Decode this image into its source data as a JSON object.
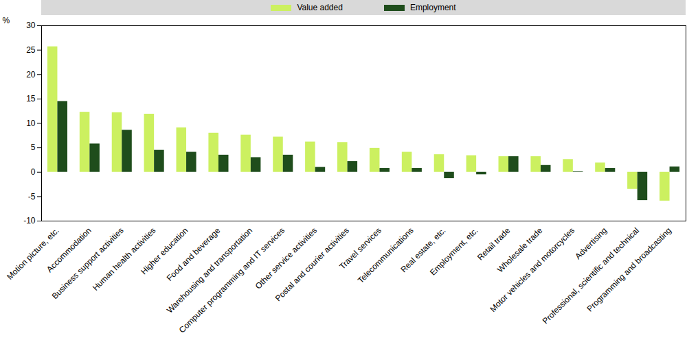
{
  "chart_data": {
    "type": "bar",
    "categories": [
      "Motion picture, etc.",
      "Accommodation",
      "Business support activities",
      "Human health activities",
      "Higher education",
      "Food and beverage",
      "Warehousing and transportation",
      "Computer programming and IT services",
      "Other service activities",
      "Postal and courier activities",
      "Travel services",
      "Telecommunications",
      "Real estate, etc.",
      "Employment, etc.",
      "Retail trade",
      "Wholesale trade",
      "Motor vehicles and motorcycles",
      "Advertising",
      "Professional, scientific and technical",
      "Programming and broadcasting"
    ],
    "series": [
      {
        "name": "Value added",
        "color": "#ccf060",
        "values": [
          25.7,
          12.3,
          12.2,
          11.9,
          9.1,
          8.0,
          7.6,
          7.2,
          6.2,
          6.1,
          4.9,
          4.1,
          3.6,
          3.4,
          3.2,
          3.2,
          2.6,
          1.9,
          -3.5,
          -5.9
        ]
      },
      {
        "name": "Employment",
        "color": "#1f4d1c",
        "values": [
          14.5,
          5.8,
          8.6,
          4.5,
          4.1,
          3.5,
          3.0,
          3.5,
          1.0,
          2.2,
          0.8,
          0.8,
          -1.3,
          -0.5,
          3.2,
          1.4,
          0.1,
          0.8,
          -5.8,
          1.1
        ]
      }
    ],
    "y_label": "%",
    "ylim": [
      -10,
      30
    ],
    "yticks": [
      -10,
      -5,
      0,
      5,
      10,
      15,
      20,
      25,
      30
    ],
    "grid": false,
    "legend": "top"
  }
}
